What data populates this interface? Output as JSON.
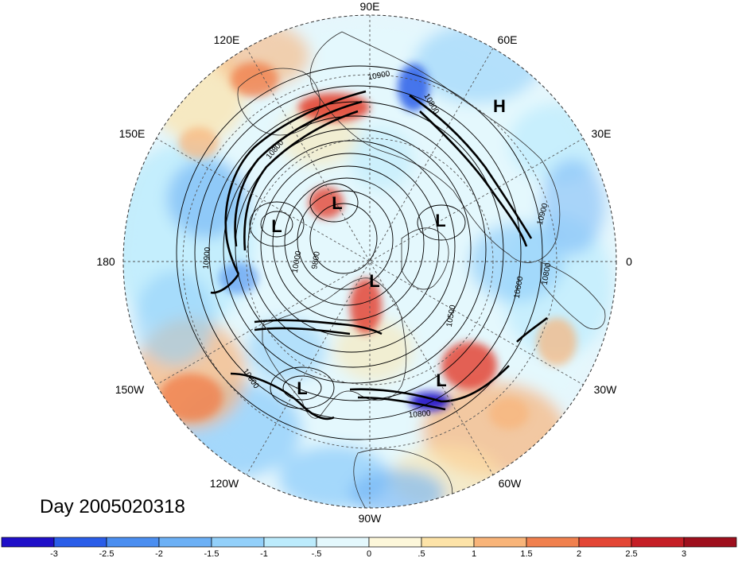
{
  "map": {
    "title": "Day 2005020318",
    "projection": "polar-stereographic-north",
    "longitude_labels": [
      "90E",
      "60E",
      "30E",
      "0",
      "30W",
      "60W",
      "90W",
      "120W",
      "150W",
      "180",
      "150E",
      "120E"
    ],
    "contour_labels": [
      "10900",
      "10900",
      "10900",
      "10800",
      "10800",
      "10800",
      "10600",
      "10500",
      "10000",
      "9800",
      "10800",
      "10800"
    ],
    "pressure_centers": [
      {
        "type": "H",
        "label": "H"
      },
      {
        "type": "L",
        "label": "L"
      },
      {
        "type": "L",
        "label": "L"
      },
      {
        "type": "L",
        "label": "L"
      },
      {
        "type": "L",
        "label": "L"
      },
      {
        "type": "L",
        "label": "L"
      },
      {
        "type": "L",
        "label": "L"
      }
    ]
  },
  "colorbar": {
    "ticks": [
      "-3",
      "-2.5",
      "-2",
      "-1.5",
      "-1",
      "-.5",
      "0",
      ".5",
      "1",
      "1.5",
      "2",
      "2.5",
      "3"
    ],
    "colors": [
      "#1f0fc8",
      "#2a5de8",
      "#4b8ef0",
      "#6cb0f5",
      "#93d0fa",
      "#bcebfc",
      "#e4f8fd",
      "#fdf7da",
      "#fde3a8",
      "#f8b479",
      "#f0804e",
      "#e34635",
      "#c51f26",
      "#9e0f1d"
    ]
  },
  "field_colors": {
    "ocean_bg": "#e9f7fc",
    "land_line": "#202020",
    "contour_line": "#000000"
  }
}
